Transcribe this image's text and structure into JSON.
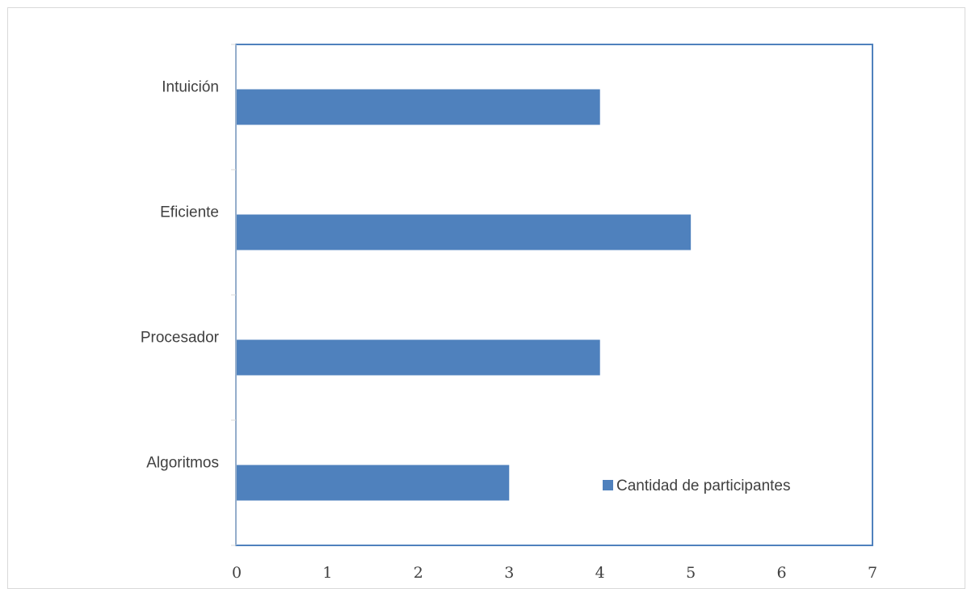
{
  "chart_data": {
    "type": "bar",
    "orientation": "horizontal",
    "categories": [
      "Algoritmos",
      "Procesador ",
      "Eficiente",
      "Intuición"
    ],
    "series": [
      {
        "name": "Cantidad de participantes",
        "values": [
          3,
          4,
          5,
          4
        ],
        "color": "#4f81bd"
      }
    ],
    "xlim": [
      0,
      7
    ],
    "x_ticks": [
      "0",
      "1",
      "2",
      "3",
      "4",
      "5",
      "6",
      "7"
    ],
    "grid": false,
    "legend_position": "inside-bottom-right",
    "plot_border_color": "#4f81bd",
    "axis_color": "#d9d9d9"
  }
}
